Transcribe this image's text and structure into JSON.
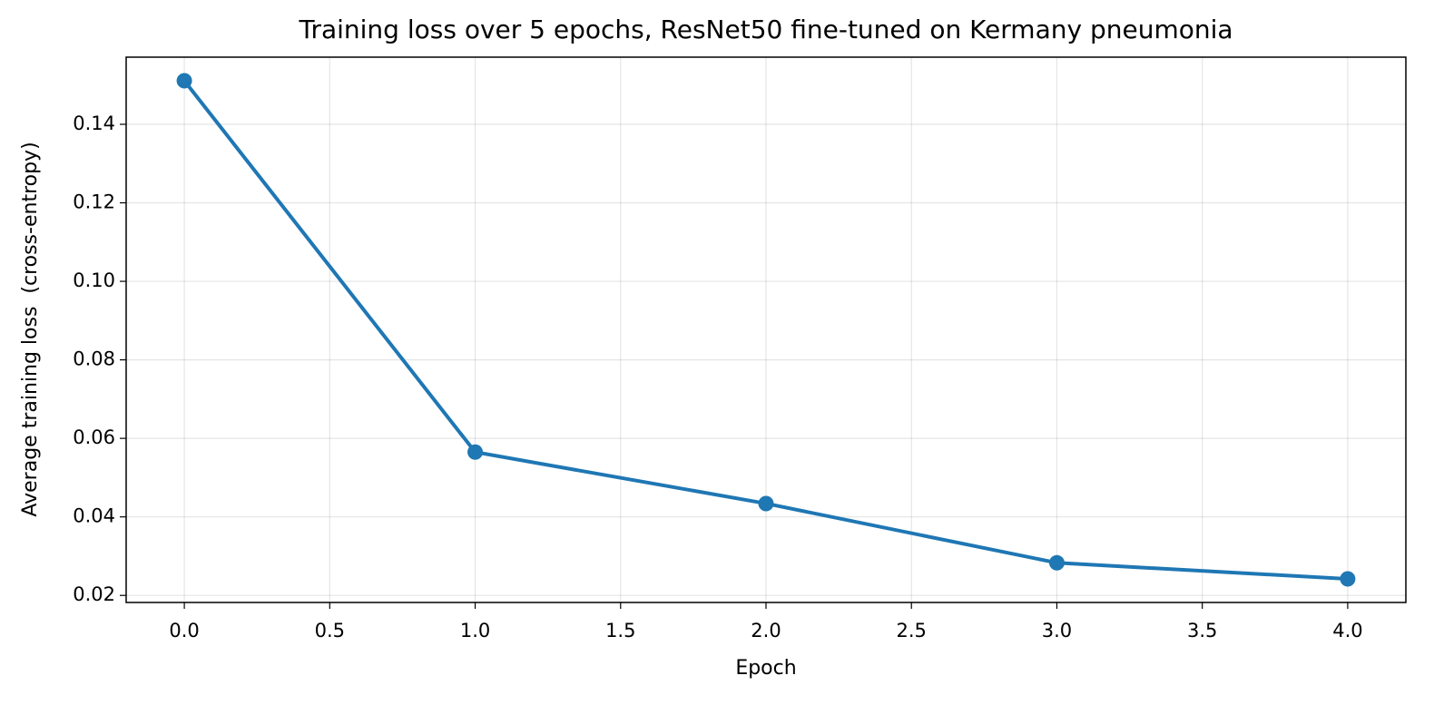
{
  "chart_data": {
    "type": "line",
    "title": "Training loss over 5 epochs, ResNet50 fine-tuned on Kermany pneumonia",
    "x_label": "Epoch",
    "y_label": "Average training loss  (cross-entropy)",
    "x": [
      0,
      1,
      2,
      3,
      4
    ],
    "values": [
      0.1511,
      0.0565,
      0.0434,
      0.0283,
      0.0242
    ],
    "color": "#1f77b4",
    "xlim": [
      -0.2,
      4.2
    ],
    "xticks": [
      {
        "value": 0,
        "label": "0.0"
      },
      {
        "value": 0.5,
        "label": "0.5"
      },
      {
        "value": 1,
        "label": "1.0"
      },
      {
        "value": 1.5,
        "label": "1.5"
      },
      {
        "value": 2,
        "label": "2.0"
      },
      {
        "value": 2.5,
        "label": "2.5"
      },
      {
        "value": 3,
        "label": "3.0"
      },
      {
        "value": 3.5,
        "label": "3.5"
      },
      {
        "value": 4,
        "label": "4.0"
      }
    ],
    "ylim": [
      0.0182,
      0.1571
    ],
    "yticks": [
      0.02,
      0.04,
      0.06,
      0.08,
      {
        "value": 0.1,
        "label": "0.10"
      },
      0.12,
      0.14
    ],
    "grid": true
  }
}
